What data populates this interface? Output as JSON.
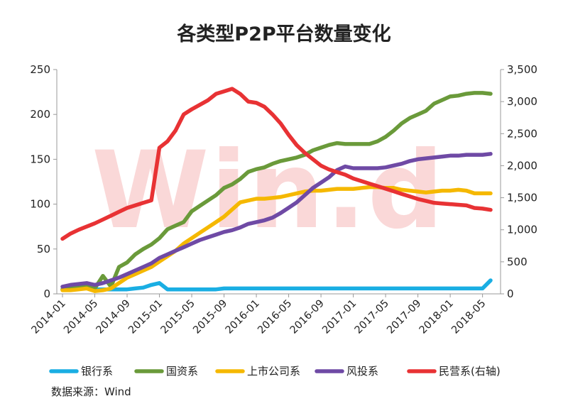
{
  "chart_data": {
    "type": "line",
    "title": "各类型P2P平台数量变化",
    "source": "数据来源：Wind",
    "watermark": "Win.d",
    "x": [
      "2014-01",
      "2014-02",
      "2014-03",
      "2014-04",
      "2014-05",
      "2014-06",
      "2014-07",
      "2014-08",
      "2014-09",
      "2014-10",
      "2014-11",
      "2014-12",
      "2015-01",
      "2015-02",
      "2015-03",
      "2015-04",
      "2015-05",
      "2015-06",
      "2015-07",
      "2015-08",
      "2015-09",
      "2015-10",
      "2015-11",
      "2015-12",
      "2016-01",
      "2016-02",
      "2016-03",
      "2016-04",
      "2016-05",
      "2016-06",
      "2016-07",
      "2016-08",
      "2016-09",
      "2016-10",
      "2016-11",
      "2016-12",
      "2017-01",
      "2017-02",
      "2017-03",
      "2017-04",
      "2017-05",
      "2017-06",
      "2017-07",
      "2017-08",
      "2017-09",
      "2017-10",
      "2017-11",
      "2017-12",
      "2018-01",
      "2018-02",
      "2018-03",
      "2018-04",
      "2018-05",
      "2018-06"
    ],
    "x_tick_labels": [
      "2014-01",
      "2014-05",
      "2014-09",
      "2015-01",
      "2015-05",
      "2015-09",
      "2016-01",
      "2016-05",
      "2016-09",
      "2017-01",
      "2017-05",
      "2017-09",
      "2018-01",
      "2018-05"
    ],
    "y_left": {
      "min": 0,
      "max": 250,
      "ticks": [
        "0",
        "50",
        "100",
        "150",
        "200",
        "250"
      ]
    },
    "y_right": {
      "min": 0,
      "max": 3500,
      "ticks": [
        "0",
        "500",
        "1,000",
        "1,500",
        "2,000",
        "2,500",
        "3,000",
        "3,500"
      ]
    },
    "grid": false,
    "legend_position": "bottom",
    "series": [
      {
        "name": "银行系",
        "axis": "left",
        "color": "#1aaee3",
        "values": [
          5,
          5,
          6,
          7,
          5,
          5,
          5,
          5,
          5,
          6,
          7,
          10,
          12,
          5,
          5,
          5,
          5,
          5,
          5,
          5,
          6,
          6,
          6,
          6,
          6,
          6,
          6,
          6,
          6,
          6,
          6,
          6,
          6,
          6,
          6,
          6,
          6,
          6,
          6,
          6,
          6,
          6,
          6,
          6,
          6,
          6,
          6,
          6,
          6,
          6,
          6,
          6,
          6,
          15
        ]
      },
      {
        "name": "国资系",
        "axis": "left",
        "color": "#6a9a3a",
        "values": [
          5,
          6,
          8,
          10,
          6,
          20,
          8,
          30,
          35,
          44,
          50,
          55,
          62,
          72,
          76,
          80,
          92,
          98,
          104,
          110,
          118,
          122,
          128,
          136,
          139,
          141,
          145,
          148,
          150,
          152,
          155,
          160,
          163,
          166,
          168,
          167,
          167,
          167,
          167,
          170,
          175,
          182,
          190,
          196,
          200,
          204,
          212,
          216,
          220,
          221,
          223,
          224,
          224,
          223
        ]
      },
      {
        "name": "上市公司系",
        "axis": "left",
        "color": "#f5b800",
        "values": [
          4,
          4,
          5,
          6,
          3,
          4,
          6,
          12,
          18,
          22,
          26,
          30,
          36,
          42,
          48,
          56,
          62,
          68,
          74,
          80,
          86,
          94,
          102,
          104,
          106,
          106,
          107,
          108,
          110,
          112,
          114,
          115,
          115,
          116,
          117,
          117,
          117,
          118,
          119,
          119,
          118,
          118,
          116,
          115,
          114,
          113,
          114,
          115,
          115,
          116,
          115,
          112,
          112,
          112
        ]
      },
      {
        "name": "风投系",
        "axis": "left",
        "color": "#6f4aa5",
        "values": [
          8,
          10,
          11,
          12,
          10,
          12,
          15,
          18,
          22,
          26,
          30,
          34,
          40,
          44,
          48,
          52,
          56,
          60,
          63,
          66,
          69,
          71,
          74,
          78,
          80,
          82,
          85,
          90,
          96,
          102,
          110,
          118,
          124,
          130,
          138,
          142,
          140,
          140,
          140,
          140,
          141,
          143,
          145,
          148,
          150,
          151,
          152,
          153,
          154,
          154,
          155,
          155,
          155,
          156
        ]
      },
      {
        "name": "民营系(右轴)",
        "axis": "right",
        "color": "#e83234",
        "values": [
          860,
          940,
          1000,
          1050,
          1100,
          1160,
          1220,
          1280,
          1340,
          1380,
          1420,
          1460,
          2280,
          2380,
          2550,
          2800,
          2880,
          2950,
          3020,
          3120,
          3160,
          3200,
          3120,
          3000,
          2980,
          2920,
          2800,
          2660,
          2480,
          2320,
          2200,
          2100,
          2000,
          1940,
          1900,
          1860,
          1800,
          1760,
          1720,
          1680,
          1640,
          1600,
          1560,
          1520,
          1480,
          1450,
          1420,
          1410,
          1400,
          1390,
          1380,
          1340,
          1330,
          1310
        ]
      }
    ]
  }
}
